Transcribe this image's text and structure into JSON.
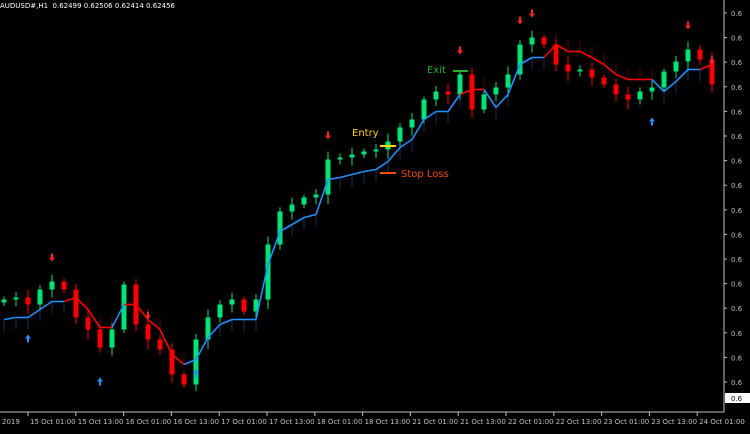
{
  "header": {
    "title": "AUDUSD#,H1  0.62499 0.62506 0.62414 0.62456"
  },
  "colors": {
    "background": "#000000",
    "bull": "#00e676",
    "bear": "#ff0000",
    "trail_up": "#1e90ff",
    "trail_down": "#ff0000",
    "axis": "#c0c0c0",
    "entry": "#ffd700",
    "exit": "#22b022",
    "stop": "#ff4500"
  },
  "chart_data": {
    "type": "candlestick",
    "ylim": [
      0.6141,
      0.6305
    ],
    "first_open": 0.6184,
    "closes": [
      0.61852,
      0.6186,
      0.61832,
      0.61892,
      0.61924,
      0.61892,
      0.6178,
      0.61732,
      0.6166,
      0.61732,
      0.61912,
      0.61752,
      0.61692,
      0.61652,
      0.61552,
      0.61512,
      0.61692,
      0.6178,
      0.61832,
      0.61852,
      0.61804,
      0.61852,
      0.62072,
      0.62204,
      0.62232,
      0.6226,
      0.62272,
      0.62412,
      0.6242,
      0.62432,
      0.62444,
      0.62452,
      0.62484,
      0.6254,
      0.62572,
      0.62652,
      0.62684,
      0.62672,
      0.62752,
      0.62612,
      0.62672,
      0.627,
      0.62752,
      0.62872,
      0.629,
      0.62872,
      0.62792,
      0.62764,
      0.62772,
      0.6274,
      0.62712,
      0.62672,
      0.62652,
      0.62684,
      0.627,
      0.62764,
      0.62804,
      0.62852,
      0.62812,
      0.62712
    ],
    "signals": {
      "buy": [
        2,
        8,
        16,
        54
      ],
      "sell": [
        4,
        12,
        27,
        38,
        43,
        44,
        57,
        59
      ]
    },
    "x_tick_labels": [
      "2019",
      "15 Oct 01:00",
      "15 Oct 13:00",
      "16 Oct 01:00",
      "16 Oct 13:00",
      "17 Oct 01:00",
      "17 Oct 13:00",
      "18 Oct 01:00",
      "18 Oct 13:00",
      "21 Oct 01:00",
      "21 Oct 13:00",
      "22 Oct 01:00",
      "22 Oct 13:00",
      "23 Oct 01:00",
      "23 Oct 13:00",
      "24 Oct 01:00"
    ],
    "y_tick_labels": [
      "0.6",
      "0.6",
      "0.6",
      "0.6",
      "0.6",
      "0.6",
      "0.6",
      "0.6",
      "0.6",
      "0.6",
      "0.6",
      "0.6",
      "0.6",
      "0.6",
      "0.6",
      "0.6"
    ],
    "current_price_label": "0.6",
    "annotations": {
      "entry": "Entry",
      "exit": "Exit",
      "stop_loss": "Stop Loss"
    }
  }
}
